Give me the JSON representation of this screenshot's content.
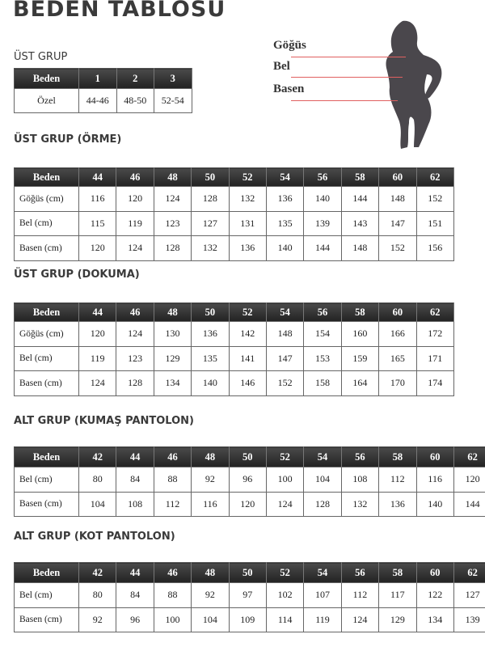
{
  "title": "BEDEN TABLOSU",
  "figure": {
    "labels": [
      "Göğüs",
      "Bel",
      "Basen"
    ],
    "line_color": "#e06060",
    "silhouette_color": "#4a474c"
  },
  "sections": [
    {
      "title": "ÜST GRUP",
      "header": [
        "Beden",
        "1",
        "2",
        "3"
      ],
      "rows": [
        [
          "Özel",
          "44-46",
          "48-50",
          "52-54"
        ]
      ]
    },
    {
      "title": "ÜST GRUP (ÖRME)",
      "header": [
        "Beden",
        "44",
        "46",
        "48",
        "50",
        "52",
        "54",
        "56",
        "58",
        "60",
        "62"
      ],
      "rows": [
        [
          "Göğüs (cm)",
          "116",
          "120",
          "124",
          "128",
          "132",
          "136",
          "140",
          "144",
          "148",
          "152"
        ],
        [
          "Bel (cm)",
          "115",
          "119",
          "123",
          "127",
          "131",
          "135",
          "139",
          "143",
          "147",
          "151"
        ],
        [
          "Basen (cm)",
          "120",
          "124",
          "128",
          "132",
          "136",
          "140",
          "144",
          "148",
          "152",
          "156"
        ]
      ]
    },
    {
      "title": "ÜST GRUP (DOKUMA)",
      "header": [
        "Beden",
        "44",
        "46",
        "48",
        "50",
        "52",
        "54",
        "56",
        "58",
        "60",
        "62"
      ],
      "rows": [
        [
          "Göğüs (cm)",
          "120",
          "124",
          "130",
          "136",
          "142",
          "148",
          "154",
          "160",
          "166",
          "172"
        ],
        [
          "Bel (cm)",
          "119",
          "123",
          "129",
          "135",
          "141",
          "147",
          "153",
          "159",
          "165",
          "171"
        ],
        [
          "Basen (cm)",
          "124",
          "128",
          "134",
          "140",
          "146",
          "152",
          "158",
          "164",
          "170",
          "174"
        ]
      ]
    },
    {
      "title": "ALT GRUP (KUMAŞ PANTOLON)",
      "header": [
        "Beden",
        "42",
        "44",
        "46",
        "48",
        "50",
        "52",
        "54",
        "56",
        "58",
        "60",
        "62"
      ],
      "rows": [
        [
          "Bel (cm)",
          "80",
          "84",
          "88",
          "92",
          "96",
          "100",
          "104",
          "108",
          "112",
          "116",
          "120"
        ],
        [
          "Basen (cm)",
          "104",
          "108",
          "112",
          "116",
          "120",
          "124",
          "128",
          "132",
          "136",
          "140",
          "144"
        ]
      ]
    },
    {
      "title": "ALT GRUP (KOT PANTOLON)",
      "header": [
        "Beden",
        "42",
        "44",
        "46",
        "48",
        "50",
        "52",
        "54",
        "56",
        "58",
        "60",
        "62"
      ],
      "rows": [
        [
          "Bel (cm)",
          "80",
          "84",
          "88",
          "92",
          "97",
          "102",
          "107",
          "112",
          "117",
          "122",
          "127"
        ],
        [
          "Basen (cm)",
          "92",
          "96",
          "100",
          "104",
          "109",
          "114",
          "119",
          "124",
          "129",
          "134",
          "139"
        ]
      ]
    }
  ]
}
